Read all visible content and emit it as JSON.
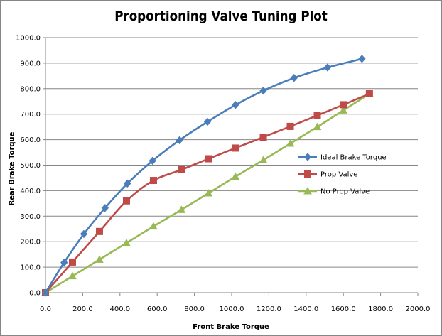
{
  "chart_data": {
    "type": "line",
    "title": "Proportioning Valve Tuning Plot",
    "xlabel": "Front Brake Torque",
    "ylabel": "Rear Brake Torque",
    "xlim": [
      0,
      2000
    ],
    "ylim": [
      0,
      1000
    ],
    "x_ticks": [
      "0.0",
      "200.0",
      "400.0",
      "600.0",
      "800.0",
      "1000.0",
      "1200.0",
      "1400.0",
      "1600.0",
      "1800.0",
      "2000.0"
    ],
    "y_ticks": [
      "0.0",
      "100.0",
      "200.0",
      "300.0",
      "400.0",
      "500.0",
      "600.0",
      "700.0",
      "800.0",
      "900.0",
      "1000.0"
    ],
    "grid": "horizontal",
    "legend_position": "right",
    "series": [
      {
        "name": "Ideal Brake Torque",
        "color": "#4A7EBB",
        "marker": "diamond",
        "points": [
          [
            0,
            0
          ],
          [
            100,
            118
          ],
          [
            206,
            230
          ],
          [
            320,
            332
          ],
          [
            440,
            428
          ],
          [
            575,
            517
          ],
          [
            720,
            598
          ],
          [
            870,
            670
          ],
          [
            1020,
            736
          ],
          [
            1170,
            792
          ],
          [
            1335,
            842
          ],
          [
            1515,
            883
          ],
          [
            1700,
            917
          ]
        ]
      },
      {
        "name": "Prop Valve",
        "color": "#BE4B48",
        "marker": "square",
        "points": [
          [
            0,
            0
          ],
          [
            145,
            120
          ],
          [
            290,
            240
          ],
          [
            435,
            360
          ],
          [
            580,
            440
          ],
          [
            730,
            482
          ],
          [
            875,
            525
          ],
          [
            1020,
            567
          ],
          [
            1170,
            610
          ],
          [
            1315,
            652
          ],
          [
            1460,
            695
          ],
          [
            1600,
            737
          ],
          [
            1740,
            780
          ]
        ]
      },
      {
        "name": "No Prop Valve",
        "color": "#98B954",
        "marker": "triangle",
        "points": [
          [
            0,
            0
          ],
          [
            145,
            65
          ],
          [
            290,
            130
          ],
          [
            435,
            195
          ],
          [
            580,
            260
          ],
          [
            730,
            325
          ],
          [
            875,
            390
          ],
          [
            1020,
            455
          ],
          [
            1170,
            520
          ],
          [
            1315,
            585
          ],
          [
            1460,
            650
          ],
          [
            1600,
            715
          ],
          [
            1740,
            780
          ]
        ]
      }
    ]
  }
}
